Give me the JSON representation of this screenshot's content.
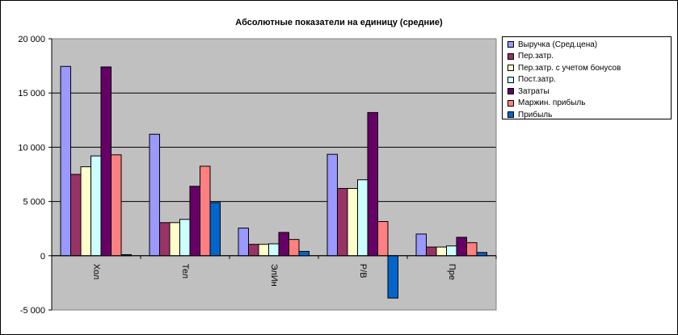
{
  "chart_data": {
    "type": "bar",
    "title": "Абсолютные показатели на единицу (средние)",
    "categories": [
      "Хол",
      "Тел",
      "ЭлИн",
      "Р/В",
      "Пре"
    ],
    "ylim": [
      -5000,
      20000
    ],
    "yticks": [
      -5000,
      0,
      5000,
      10000,
      15000,
      20000
    ],
    "ytick_labels": [
      "-5 000",
      "0",
      "5 000",
      "10 000",
      "15 000",
      "20 000"
    ],
    "grid": true,
    "legend": "right",
    "plot_bg": "#c0c0c0",
    "series": [
      {
        "name": "Выручка (Сред.цена)",
        "color": "#9999ff",
        "values": [
          17450,
          11200,
          2550,
          9350,
          2000
        ]
      },
      {
        "name": "Пер.затр.",
        "color": "#993366",
        "values": [
          7500,
          3050,
          1050,
          6200,
          800
        ]
      },
      {
        "name": "Пер.затр. с учетом бонусов",
        "color": "#ffffcc",
        "values": [
          8200,
          3050,
          1050,
          6200,
          800
        ]
      },
      {
        "name": "Пост.затр.",
        "color": "#ccffff",
        "values": [
          9200,
          3350,
          1100,
          7000,
          900
        ]
      },
      {
        "name": "Затраты",
        "color": "#660066",
        "values": [
          17400,
          6400,
          2150,
          13200,
          1700
        ]
      },
      {
        "name": "Маржин. прибыль",
        "color": "#ff8080",
        "values": [
          9300,
          8250,
          1500,
          3150,
          1200
        ]
      },
      {
        "name": "Прибыль",
        "color": "#0066cc",
        "values": [
          100,
          4900,
          400,
          -3900,
          300
        ]
      }
    ]
  }
}
